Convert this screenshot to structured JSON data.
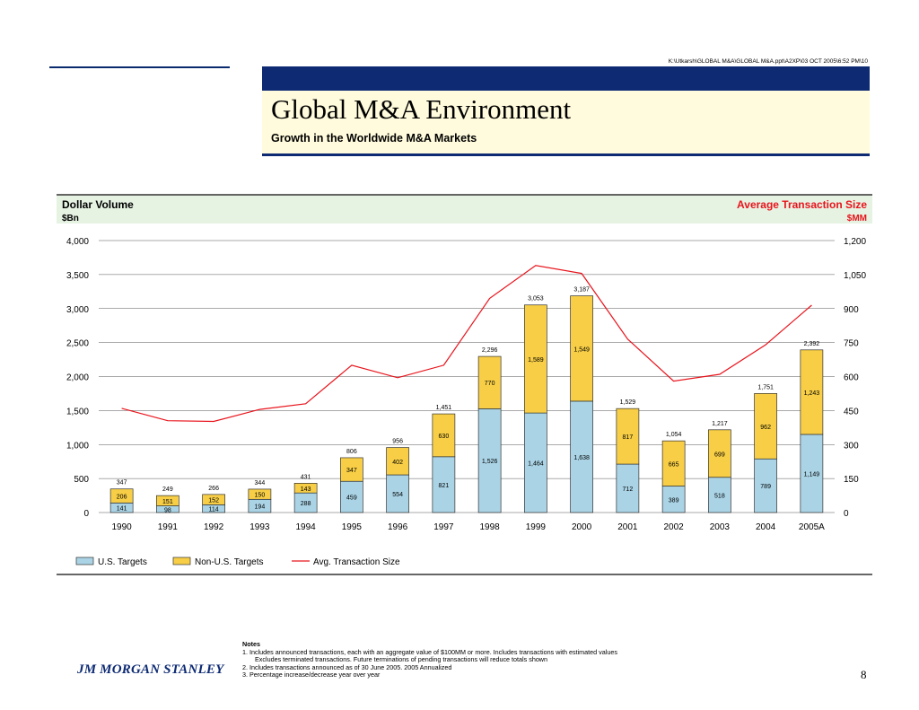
{
  "header": {
    "file_path": "K:\\Utkarsh\\GLOBAL M&A\\GLOBAL M&A.ppt\\A2XP\\03 OCT 2005\\6:52 PM\\10",
    "title": "Global M&A Environment",
    "subtitle": "Growth in the Worldwide M&A Markets"
  },
  "chart_data": {
    "type": "bar",
    "stacked": true,
    "left_axis_title": "Dollar Volume",
    "left_axis_unit": "$Bn",
    "right_axis_title": "Average Transaction Size",
    "right_axis_unit": "$MM",
    "categories": [
      "1990",
      "1991",
      "1992",
      "1993",
      "1994",
      "1995",
      "1996",
      "1997",
      "1998",
      "1999",
      "2000",
      "2001",
      "2002",
      "2003",
      "2004",
      "2005A"
    ],
    "series": [
      {
        "name": "U.S. Targets",
        "type": "bar",
        "values": [
          141,
          98,
          114,
          194,
          288,
          459,
          554,
          821,
          1526,
          1464,
          1638,
          712,
          389,
          518,
          789,
          1149
        ],
        "color": "#aad4e6"
      },
      {
        "name": "Non-U.S. Targets",
        "type": "bar",
        "values": [
          206,
          151,
          152,
          150,
          143,
          347,
          402,
          630,
          770,
          1589,
          1549,
          817,
          665,
          699,
          962,
          1243
        ],
        "color": "#f7ce46"
      },
      {
        "name": "Avg. Transaction Size",
        "type": "line",
        "axis": "right",
        "values": [
          460,
          405,
          402,
          455,
          480,
          650,
          595,
          650,
          945,
          1090,
          1055,
          765,
          580,
          610,
          740,
          915
        ],
        "color": "#e8141c"
      }
    ],
    "totals": [
      347,
      249,
      266,
      344,
      431,
      806,
      956,
      1451,
      2296,
      3053,
      3187,
      1529,
      1054,
      1217,
      1751,
      2392
    ],
    "yticks_left": [
      "0",
      "500",
      "1,000",
      "1,500",
      "2,000",
      "2,500",
      "3,000",
      "3,500",
      "4,000"
    ],
    "yticks_right": [
      "0",
      "150",
      "300",
      "450",
      "600",
      "750",
      "900",
      "1,050",
      "1,200"
    ],
    "ylim_left": [
      0,
      4000
    ],
    "ylim_right": [
      0,
      1200
    ],
    "grid": true,
    "legend_position": "bottom-left"
  },
  "notes": {
    "heading": "Notes",
    "lines": [
      "1.  Includes announced transactions, each with an aggregate value of $100MM or more. Includes transactions with estimated values",
      "Excludes terminated transactions. Future terminations of pending transactions will reduce totals shown",
      "2.  Includes transactions announced as of 30 June 2005. 2005 Annualized",
      "3.  Percentage increase/decrease year over year"
    ]
  },
  "footer": {
    "logo_text": "JM MORGAN STANLEY",
    "page_number": "8"
  }
}
